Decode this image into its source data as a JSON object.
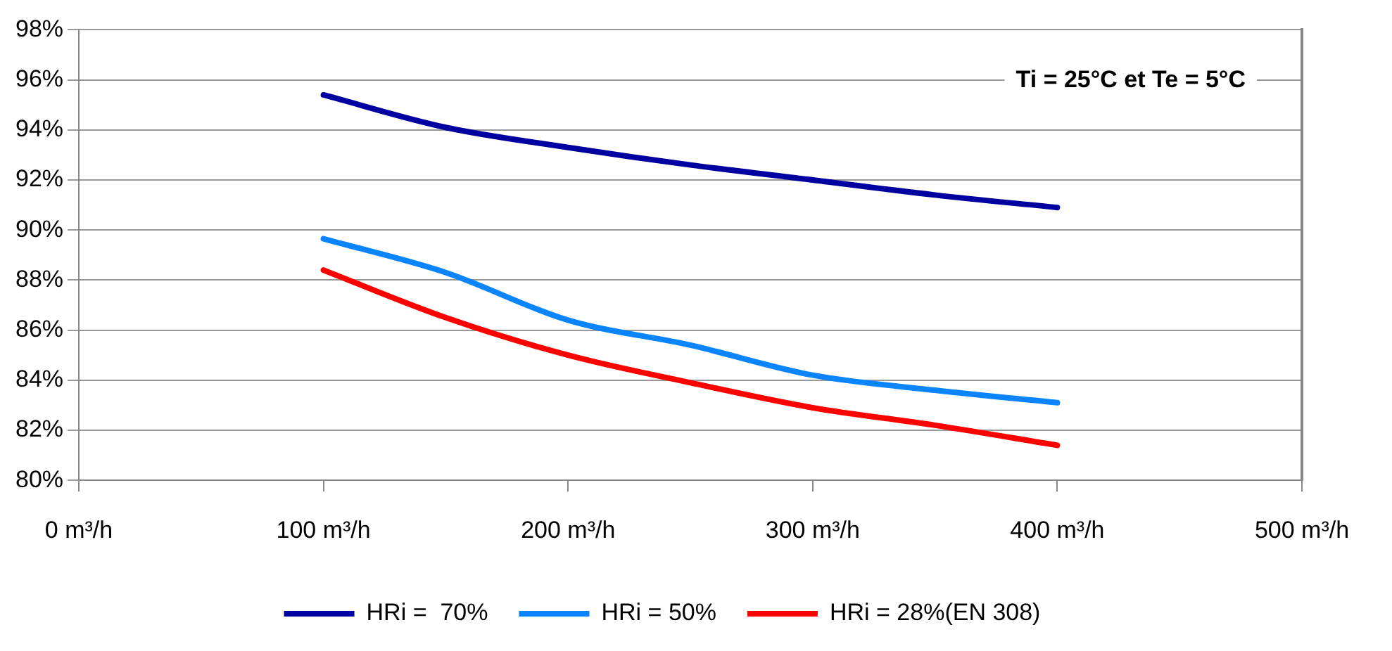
{
  "chart_data": {
    "type": "line",
    "annotations": [
      "Ti = 25°C et Te = 5°C"
    ],
    "x": [
      100,
      150,
      200,
      250,
      300,
      350,
      400
    ],
    "series": [
      {
        "name": "HRi =  70%",
        "color": "#0000a0",
        "values": [
          95.4,
          94.1,
          93.3,
          92.6,
          92.0,
          91.4,
          90.9
        ]
      },
      {
        "name": "HRi = 50%",
        "color": "#0a84ff",
        "values": [
          89.65,
          88.3,
          86.4,
          85.4,
          84.2,
          83.6,
          83.1
        ]
      },
      {
        "name": "HRi = 28%(EN 308)",
        "color": "#ff0000",
        "values": [
          88.4,
          86.5,
          85.0,
          83.9,
          82.9,
          82.2,
          81.4
        ]
      }
    ],
    "xlim": [
      0,
      500
    ],
    "xticks": [
      {
        "value": 0,
        "label": "0 m³/h"
      },
      {
        "value": 100,
        "label": "100 m³/h"
      },
      {
        "value": 200,
        "label": "200 m³/h"
      },
      {
        "value": 300,
        "label": "300 m³/h"
      },
      {
        "value": 400,
        "label": "400 m³/h"
      },
      {
        "value": 500,
        "label": "500 m³/h"
      }
    ],
    "ylim": [
      80,
      98
    ],
    "yticks": [
      {
        "value": 80,
        "label": "80%"
      },
      {
        "value": 82,
        "label": "82%"
      },
      {
        "value": 84,
        "label": "84%"
      },
      {
        "value": 86,
        "label": "86%"
      },
      {
        "value": 88,
        "label": "88%"
      },
      {
        "value": 90,
        "label": "90%"
      },
      {
        "value": 92,
        "label": "92%"
      },
      {
        "value": 94,
        "label": "94%"
      },
      {
        "value": 96,
        "label": "96%"
      },
      {
        "value": 98,
        "label": "98%"
      }
    ],
    "grid": "y",
    "legend": "bottom",
    "marker": "none",
    "line_style": "solid"
  }
}
